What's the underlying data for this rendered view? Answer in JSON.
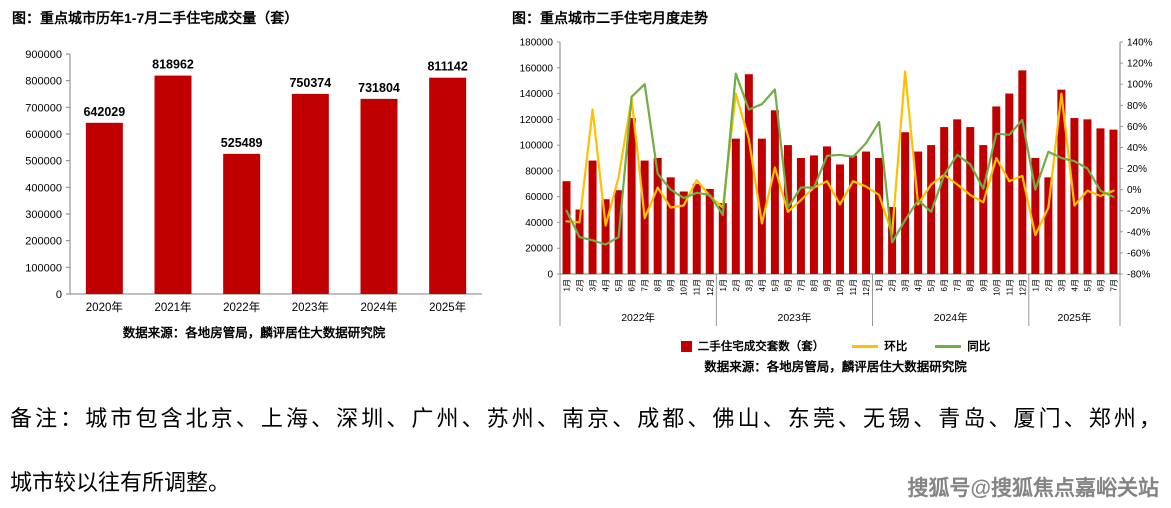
{
  "page": {
    "note_line1": "备注：城市包含北京、上海、深圳、广州、苏州、南京、成都、佛山、东莞、无锡、青岛、厦门、郑州，",
    "note_line2": "城市较以往有所调整。",
    "watermark": "搜狐号@搜狐焦点嘉峪关站"
  },
  "colors": {
    "bar": "#C00000",
    "mom": "#FFC000",
    "yoy": "#70AD47"
  },
  "chart_data": [
    {
      "type": "bar",
      "title": "图：重点城市历年1-7月二手住宅成交量（套）",
      "source": "数据来源：各地房管局，麟评居住大数据研究院",
      "categories": [
        "2020年",
        "2021年",
        "2022年",
        "2023年",
        "2024年",
        "2025年"
      ],
      "values": [
        642029,
        818962,
        525489,
        750374,
        731804,
        811142
      ],
      "y_axis": {
        "max": 900000,
        "step": 100000,
        "ticks": [
          "0",
          "100000",
          "200000",
          "300000",
          "400000",
          "500000",
          "600000",
          "700000",
          "800000",
          "900000"
        ]
      },
      "grid": "off",
      "legend": "none"
    },
    {
      "type": "combo",
      "title": "图：重点城市二手住宅月度走势",
      "source": "数据来源：各地房管局，麟评居住大数据研究院",
      "categories": [
        "1月",
        "2月",
        "3月",
        "4月",
        "5月",
        "6月",
        "7月",
        "8月",
        "9月",
        "10月",
        "11月",
        "12月",
        "1月",
        "2月",
        "3月",
        "4月",
        "5月",
        "6月",
        "7月",
        "8月",
        "9月",
        "10月",
        "11月",
        "12月",
        "1月",
        "2月",
        "3月",
        "4月",
        "5月",
        "6月",
        "7月",
        "8月",
        "9月",
        "10月",
        "11月",
        "12月",
        "1月",
        "2月",
        "3月",
        "4月",
        "5月",
        "6月",
        "7月"
      ],
      "year_groups": [
        {
          "label": "2022年",
          "months": 12
        },
        {
          "label": "2023年",
          "months": 12
        },
        {
          "label": "2024年",
          "months": 12
        },
        {
          "label": "2025年",
          "months": 7
        }
      ],
      "series": [
        {
          "name": "二手住宅成交套数（套）",
          "type": "bar",
          "axis": "left",
          "values": [
            72000,
            50000,
            88000,
            58000,
            65000,
            121000,
            88000,
            90000,
            75000,
            64000,
            70000,
            66000,
            55000,
            105000,
            155000,
            105000,
            127000,
            100000,
            90000,
            92000,
            99000,
            85000,
            92000,
            95000,
            90000,
            52000,
            110000,
            95000,
            100000,
            114000,
            120000,
            114000,
            100000,
            130000,
            140000,
            158000,
            90000,
            75000,
            143000,
            121000,
            120000,
            113000,
            112000
          ]
        },
        {
          "name": "环比",
          "type": "line",
          "axis": "right",
          "values": [
            -30,
            -31,
            76,
            -34,
            12,
            86,
            -27,
            2,
            -17,
            -15,
            9,
            -6,
            -17,
            91,
            48,
            -32,
            21,
            -21,
            -10,
            2,
            8,
            -14,
            8,
            3,
            -5,
            -42,
            112,
            -14,
            5,
            14,
            5,
            -5,
            -12,
            30,
            8,
            13,
            -43,
            -17,
            91,
            -15,
            -1,
            -6,
            -1
          ]
        },
        {
          "name": "同比",
          "type": "line",
          "axis": "right",
          "values": [
            -20,
            -45,
            -48,
            -52,
            -45,
            88,
            100,
            15,
            0,
            -8,
            -3,
            -5,
            -24,
            110,
            76,
            81,
            95,
            -17,
            2,
            2,
            32,
            33,
            31,
            44,
            64,
            -50,
            -29,
            -10,
            -21,
            14,
            33,
            24,
            1,
            53,
            52,
            66,
            0,
            36,
            30,
            27,
            20,
            -1,
            -7
          ]
        }
      ],
      "left_axis": {
        "max": 180000,
        "step": 20000,
        "ticks": [
          "0",
          "20000",
          "40000",
          "60000",
          "80000",
          "100000",
          "120000",
          "140000",
          "160000",
          "180000"
        ]
      },
      "right_axis": {
        "min": -80,
        "max": 140,
        "step": 20,
        "ticks": [
          "-80%",
          "-60%",
          "-40%",
          "-20%",
          "0%",
          "20%",
          "40%",
          "60%",
          "80%",
          "100%",
          "120%",
          "140%"
        ]
      },
      "grid": "off",
      "legend_position": "bottom"
    }
  ]
}
